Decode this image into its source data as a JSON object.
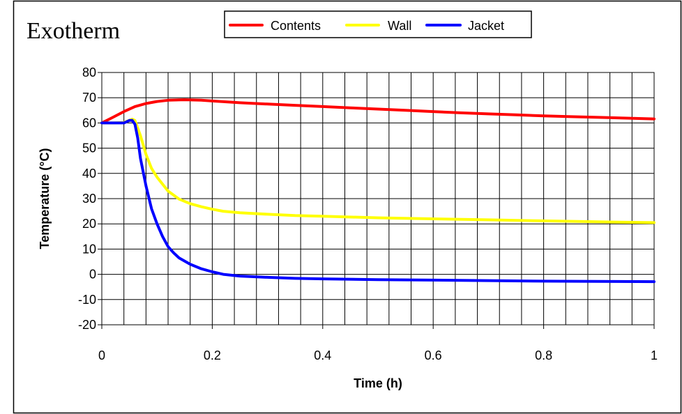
{
  "chart_data": {
    "type": "line",
    "title": "Exotherm",
    "xlabel": "Time (h)",
    "ylabel": "Temperature (°C)",
    "xlim": [
      0,
      1
    ],
    "ylim": [
      -20,
      80
    ],
    "x_ticks": [
      0,
      0.2,
      0.4,
      0.6,
      0.8,
      1
    ],
    "x_tick_labels": [
      "0",
      "0.2",
      "0.4",
      "0.6",
      "0.8",
      "1"
    ],
    "y_ticks": [
      -20,
      -10,
      0,
      10,
      20,
      30,
      40,
      50,
      60,
      70,
      80
    ],
    "y_tick_labels": [
      "-20",
      "-10",
      "0",
      "10",
      "20",
      "30",
      "40",
      "50",
      "60",
      "70",
      "80"
    ],
    "x_minor_gridlines": 0.04,
    "grid": true,
    "legend_position": "top-center",
    "series": [
      {
        "name": "Contents",
        "color": "#ff0000",
        "x": [
          0,
          0.02,
          0.04,
          0.06,
          0.08,
          0.1,
          0.12,
          0.15,
          0.18,
          0.2,
          0.25,
          0.3,
          0.35,
          0.4,
          0.45,
          0.5,
          0.55,
          0.6,
          0.65,
          0.7,
          0.75,
          0.8,
          0.85,
          0.9,
          0.95,
          1.0
        ],
        "values": [
          60,
          62.2,
          64.5,
          66.5,
          67.7,
          68.5,
          69,
          69.2,
          69,
          68.7,
          68,
          67.5,
          67,
          66.5,
          66,
          65.5,
          65,
          64.5,
          64,
          63.6,
          63.2,
          62.8,
          62.5,
          62.2,
          61.9,
          61.6
        ]
      },
      {
        "name": "Wall",
        "color": "#ffff00",
        "x": [
          0,
          0.02,
          0.04,
          0.055,
          0.06,
          0.07,
          0.08,
          0.09,
          0.1,
          0.12,
          0.14,
          0.16,
          0.18,
          0.2,
          0.22,
          0.25,
          0.3,
          0.35,
          0.4,
          0.5,
          0.6,
          0.7,
          0.8,
          0.9,
          1.0
        ],
        "values": [
          60,
          60,
          60.2,
          61.5,
          61,
          55,
          47.5,
          42,
          38.5,
          33,
          29.8,
          28,
          26.8,
          25.8,
          25,
          24.4,
          23.8,
          23.3,
          23,
          22.4,
          22,
          21.6,
          21.2,
          20.8,
          20.5
        ]
      },
      {
        "name": "Jacket",
        "color": "#0000ff",
        "x": [
          0,
          0.02,
          0.04,
          0.05,
          0.055,
          0.06,
          0.065,
          0.07,
          0.08,
          0.09,
          0.1,
          0.11,
          0.12,
          0.13,
          0.14,
          0.16,
          0.18,
          0.2,
          0.22,
          0.25,
          0.3,
          0.35,
          0.4,
          0.5,
          0.6,
          0.7,
          0.8,
          0.9,
          1.0
        ],
        "values": [
          60,
          60,
          60,
          61,
          61,
          59.5,
          54,
          46,
          35,
          26,
          20,
          15,
          11,
          8.5,
          6.5,
          4,
          2.2,
          1,
          0,
          -0.7,
          -1.2,
          -1.6,
          -1.8,
          -2.1,
          -2.3,
          -2.5,
          -2.7,
          -2.8,
          -2.9
        ]
      }
    ]
  }
}
